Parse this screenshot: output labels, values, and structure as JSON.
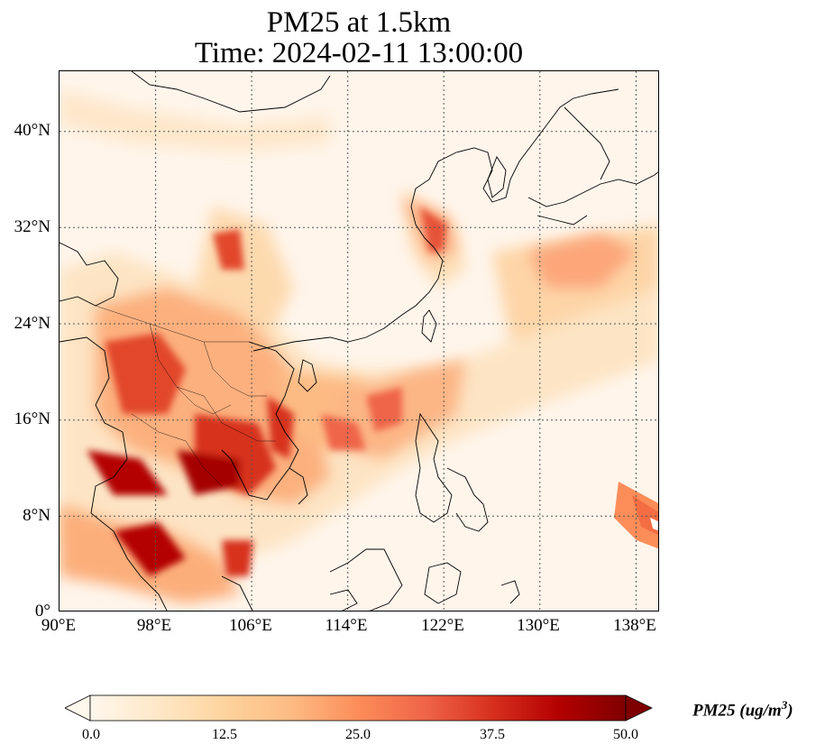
{
  "title": {
    "line1": "PM25 at 1.5km",
    "line2": "Time: 2024-02-11 13:00:00"
  },
  "map": {
    "extent": {
      "lon": [
        90,
        140
      ],
      "lat": [
        0,
        45
      ]
    },
    "lat_ticks": [
      "40°N",
      "32°N",
      "24°N",
      "16°N",
      "8°N",
      "0°"
    ],
    "lon_ticks": [
      "90°E",
      "98°E",
      "106°E",
      "114°E",
      "122°E",
      "130°E",
      "138°E"
    ],
    "grid": "dotted"
  },
  "colorbar": {
    "label": "PM25 (ug/m",
    "label_sup": "3",
    "label_close": ")",
    "ticks": [
      "0.0",
      "12.5",
      "25.0",
      "37.5",
      "50.0"
    ],
    "range": [
      0,
      50
    ],
    "extend": "both",
    "colormap": "OrRd",
    "colors": [
      "#fff7ec",
      "#fee8c8",
      "#fdd49e",
      "#fdbb84",
      "#fc8d59",
      "#ef6548",
      "#d7301f",
      "#b30000",
      "#7f0000"
    ]
  }
}
